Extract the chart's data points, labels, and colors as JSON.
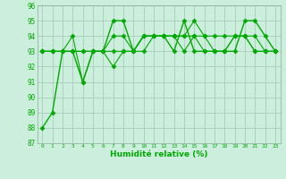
{
  "xlabel": "Humidité relative (%)",
  "bg_color": "#cceedd",
  "grid_color": "#aaccbb",
  "line_color": "#00aa00",
  "marker_color": "#00aa00",
  "x_ticks": [
    0,
    1,
    2,
    3,
    4,
    5,
    6,
    7,
    8,
    9,
    10,
    11,
    12,
    13,
    14,
    15,
    16,
    17,
    18,
    19,
    20,
    21,
    22,
    23
  ],
  "ylim": [
    87,
    96
  ],
  "y_ticks": [
    87,
    88,
    89,
    90,
    91,
    92,
    93,
    94,
    95,
    96
  ],
  "series1": [
    88,
    89,
    93,
    93,
    91,
    93,
    93,
    95,
    95,
    93,
    94,
    94,
    94,
    93,
    95,
    93,
    93,
    93,
    93,
    93,
    95,
    95,
    94,
    93
  ],
  "series2": [
    93,
    93,
    93,
    94,
    91,
    93,
    93,
    94,
    94,
    93,
    94,
    94,
    94,
    94,
    94,
    95,
    94,
    93,
    93,
    94,
    94,
    94,
    93,
    93
  ],
  "series3": [
    93,
    93,
    93,
    93,
    93,
    93,
    93,
    92,
    93,
    93,
    93,
    94,
    94,
    94,
    93,
    94,
    93,
    93,
    93,
    94,
    94,
    93,
    93,
    93
  ],
  "series4": [
    93,
    93,
    93,
    93,
    93,
    93,
    93,
    93,
    93,
    93,
    94,
    94,
    94,
    94,
    94,
    94,
    94,
    94,
    94,
    94,
    94,
    93,
    93,
    93
  ]
}
